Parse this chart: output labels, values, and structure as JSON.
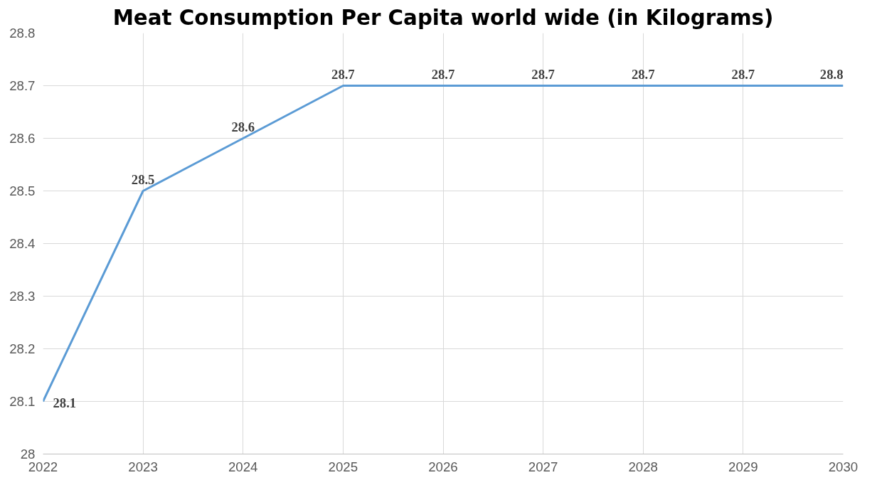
{
  "chart_data": {
    "type": "line",
    "title": "Meat Consumption Per Capita world wide (in Kilograms)",
    "x": [
      2022,
      2023,
      2024,
      2025,
      2026,
      2027,
      2028,
      2029,
      2030
    ],
    "series": [
      {
        "color": "#5b9bd5",
        "values": [
          28.1,
          28.5,
          28.6,
          28.7,
          28.7,
          28.7,
          28.7,
          28.7,
          28.7
        ]
      }
    ],
    "value_labels": [
      "28.1",
      "28.5",
      "28.6",
      "28.7",
      "28.7",
      "28.7",
      "28.7",
      "28.7",
      "28.8"
    ],
    "xlim": [
      2022,
      2030
    ],
    "xticks": [
      2022,
      2023,
      2024,
      2025,
      2026,
      2027,
      2028,
      2029,
      2030
    ],
    "ylim": [
      28,
      28.8
    ],
    "yticks": [
      28,
      28.1,
      28.2,
      28.3,
      28.4,
      28.5,
      28.6,
      28.7,
      28.8
    ],
    "grid": true,
    "marker": "none",
    "line_style": "solid"
  }
}
